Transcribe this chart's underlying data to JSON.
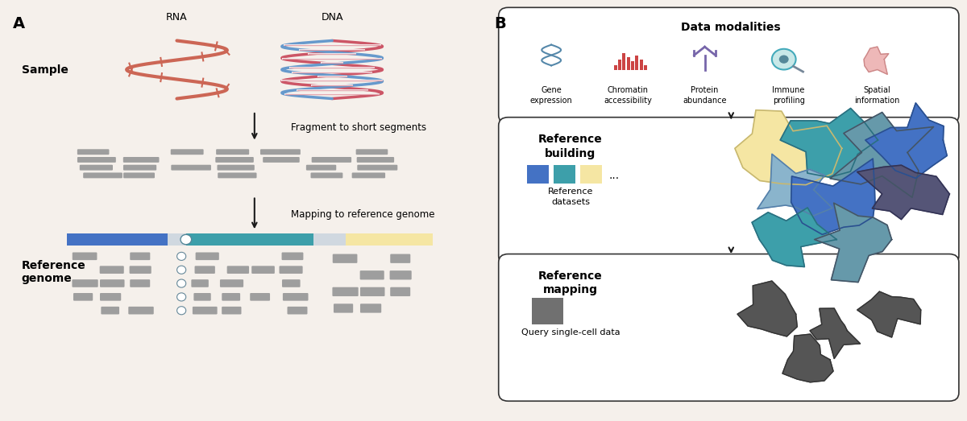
{
  "bg_color": "#f5f0eb",
  "panel_bg": "#f5f0eb",
  "white": "#ffffff",
  "border_color": "#333333",
  "label_A": "A",
  "label_B": "B",
  "sample_label": "Sample",
  "ref_genome_label": "Reference\ngenome",
  "arrow1_text": "Fragment to short segments",
  "arrow2_text": "Mapping to reference genome",
  "rna_label": "RNA",
  "dna_label": "DNA",
  "seg_color": "#9e9e9e",
  "genome_blue": "#4472c4",
  "genome_teal": "#3d9faa",
  "genome_yellow": "#f5e6a3",
  "genome_bg": "#d0d8e0",
  "box_bg": "#ffffff",
  "box_border": "#333333",
  "data_mod_title": "Data modalities",
  "gene_expr_label": "Gene\nexpression",
  "chromatin_label": "Chromatin\naccessibility",
  "protein_label": "Protein\nabundance",
  "immune_label": "Immune\nprofiling",
  "spatial_label": "Spatial\ninformation",
  "ref_building_title": "Reference\nbuilding",
  "ref_datasets_label": "Reference\ndatasets",
  "ref_mapping_title": "Reference\nmapping",
  "query_label": "Query single-cell data",
  "sq_blue": "#4472c4",
  "sq_teal": "#3d9faa",
  "sq_yellow": "#f5e6a3",
  "arrow_color": "#1a1a1a",
  "rna_color1": "#cc6655",
  "rna_color2": "#e88877",
  "dna_color1": "#cc5566",
  "dna_color2": "#6699cc",
  "cell_colors": [
    "#4472c4",
    "#3d9faa",
    "#f5e6a3",
    "#6699aa",
    "#8ab4cc",
    "#557799"
  ],
  "dark_gray": "#555555",
  "mid_gray": "#777777"
}
